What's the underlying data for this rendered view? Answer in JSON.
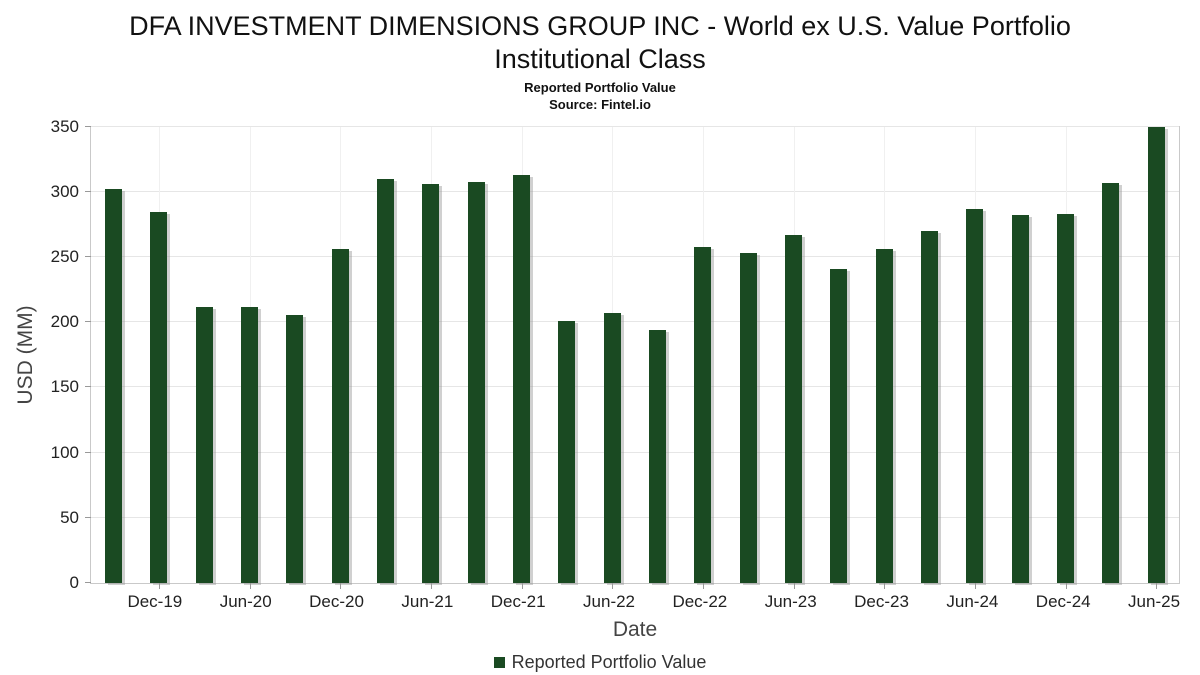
{
  "header": {
    "title_line1": "DFA INVESTMENT DIMENSIONS GROUP INC - World ex U.S. Value Portfolio",
    "title_line2": "Institutional Class",
    "subtitle": "Reported Portfolio Value",
    "source": "Source: Fintel.io"
  },
  "legend": {
    "label": "Reported Portfolio Value",
    "color": "#1a4a22"
  },
  "chart_data": {
    "type": "bar",
    "title": "DFA INVESTMENT DIMENSIONS GROUP INC - World ex U.S. Value Portfolio Institutional Class",
    "subtitle": "Reported Portfolio Value",
    "source": "Source: Fintel.io",
    "xlabel": "Date",
    "ylabel": "USD (MM)",
    "ylim": [
      0,
      350
    ],
    "ytick_step": 50,
    "grid": true,
    "legend_position": "bottom",
    "legend_entries": [
      "Reported Portfolio Value"
    ],
    "bar_color": "#1a4a22",
    "categories": [
      "Sep-19",
      "Dec-19",
      "Mar-20",
      "Jun-20",
      "Sep-20",
      "Dec-20",
      "Mar-21",
      "Jun-21",
      "Sep-21",
      "Dec-21",
      "Mar-22",
      "Jun-22",
      "Sep-22",
      "Dec-22",
      "Mar-23",
      "Jun-23",
      "Sep-23",
      "Dec-23",
      "Mar-24",
      "Jun-24",
      "Sep-24",
      "Dec-24",
      "Mar-25",
      "Jun-25"
    ],
    "values": [
      302,
      285,
      212,
      212,
      206,
      256,
      310,
      306,
      308,
      313,
      201,
      207,
      194,
      258,
      253,
      267,
      241,
      256,
      270,
      287,
      282,
      283,
      307,
      350
    ],
    "xticks": [
      "Dec-19",
      "Jun-20",
      "Dec-20",
      "Jun-21",
      "Dec-21",
      "Jun-22",
      "Dec-22",
      "Jun-23",
      "Dec-23",
      "Jun-24",
      "Dec-24",
      "Jun-25"
    ]
  }
}
